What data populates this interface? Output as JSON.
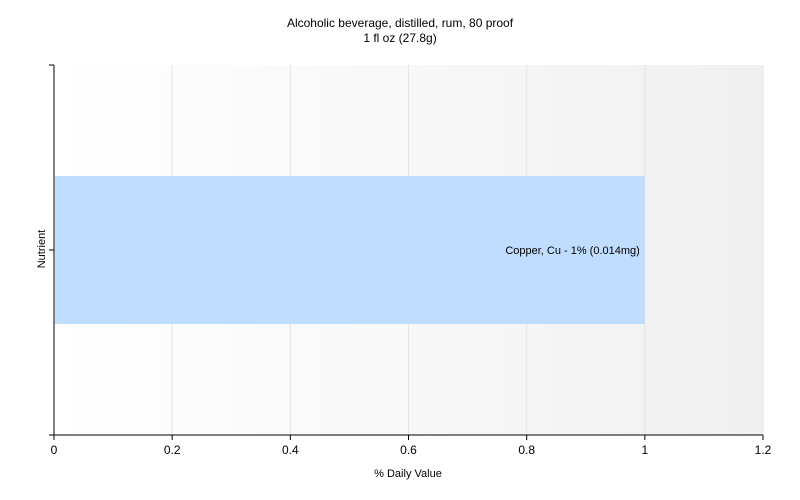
{
  "chart_data": {
    "type": "bar",
    "orientation": "horizontal",
    "title": "Alcoholic beverage, distilled, rum, 80 proof",
    "subtitle": "1 fl oz (27.8g)",
    "xlabel": "% Daily Value",
    "ylabel": "Nutrient",
    "xlim": [
      0,
      1.2
    ],
    "xticks": [
      "0",
      "0.2",
      "0.4",
      "0.6",
      "0.8",
      "1",
      "1.2"
    ],
    "categories": [
      "Copper, Cu"
    ],
    "values": [
      1
    ],
    "bar_labels": [
      "Copper, Cu - 1% (0.014mg)"
    ],
    "bar_color": "#c0dcff",
    "grid": true
  }
}
